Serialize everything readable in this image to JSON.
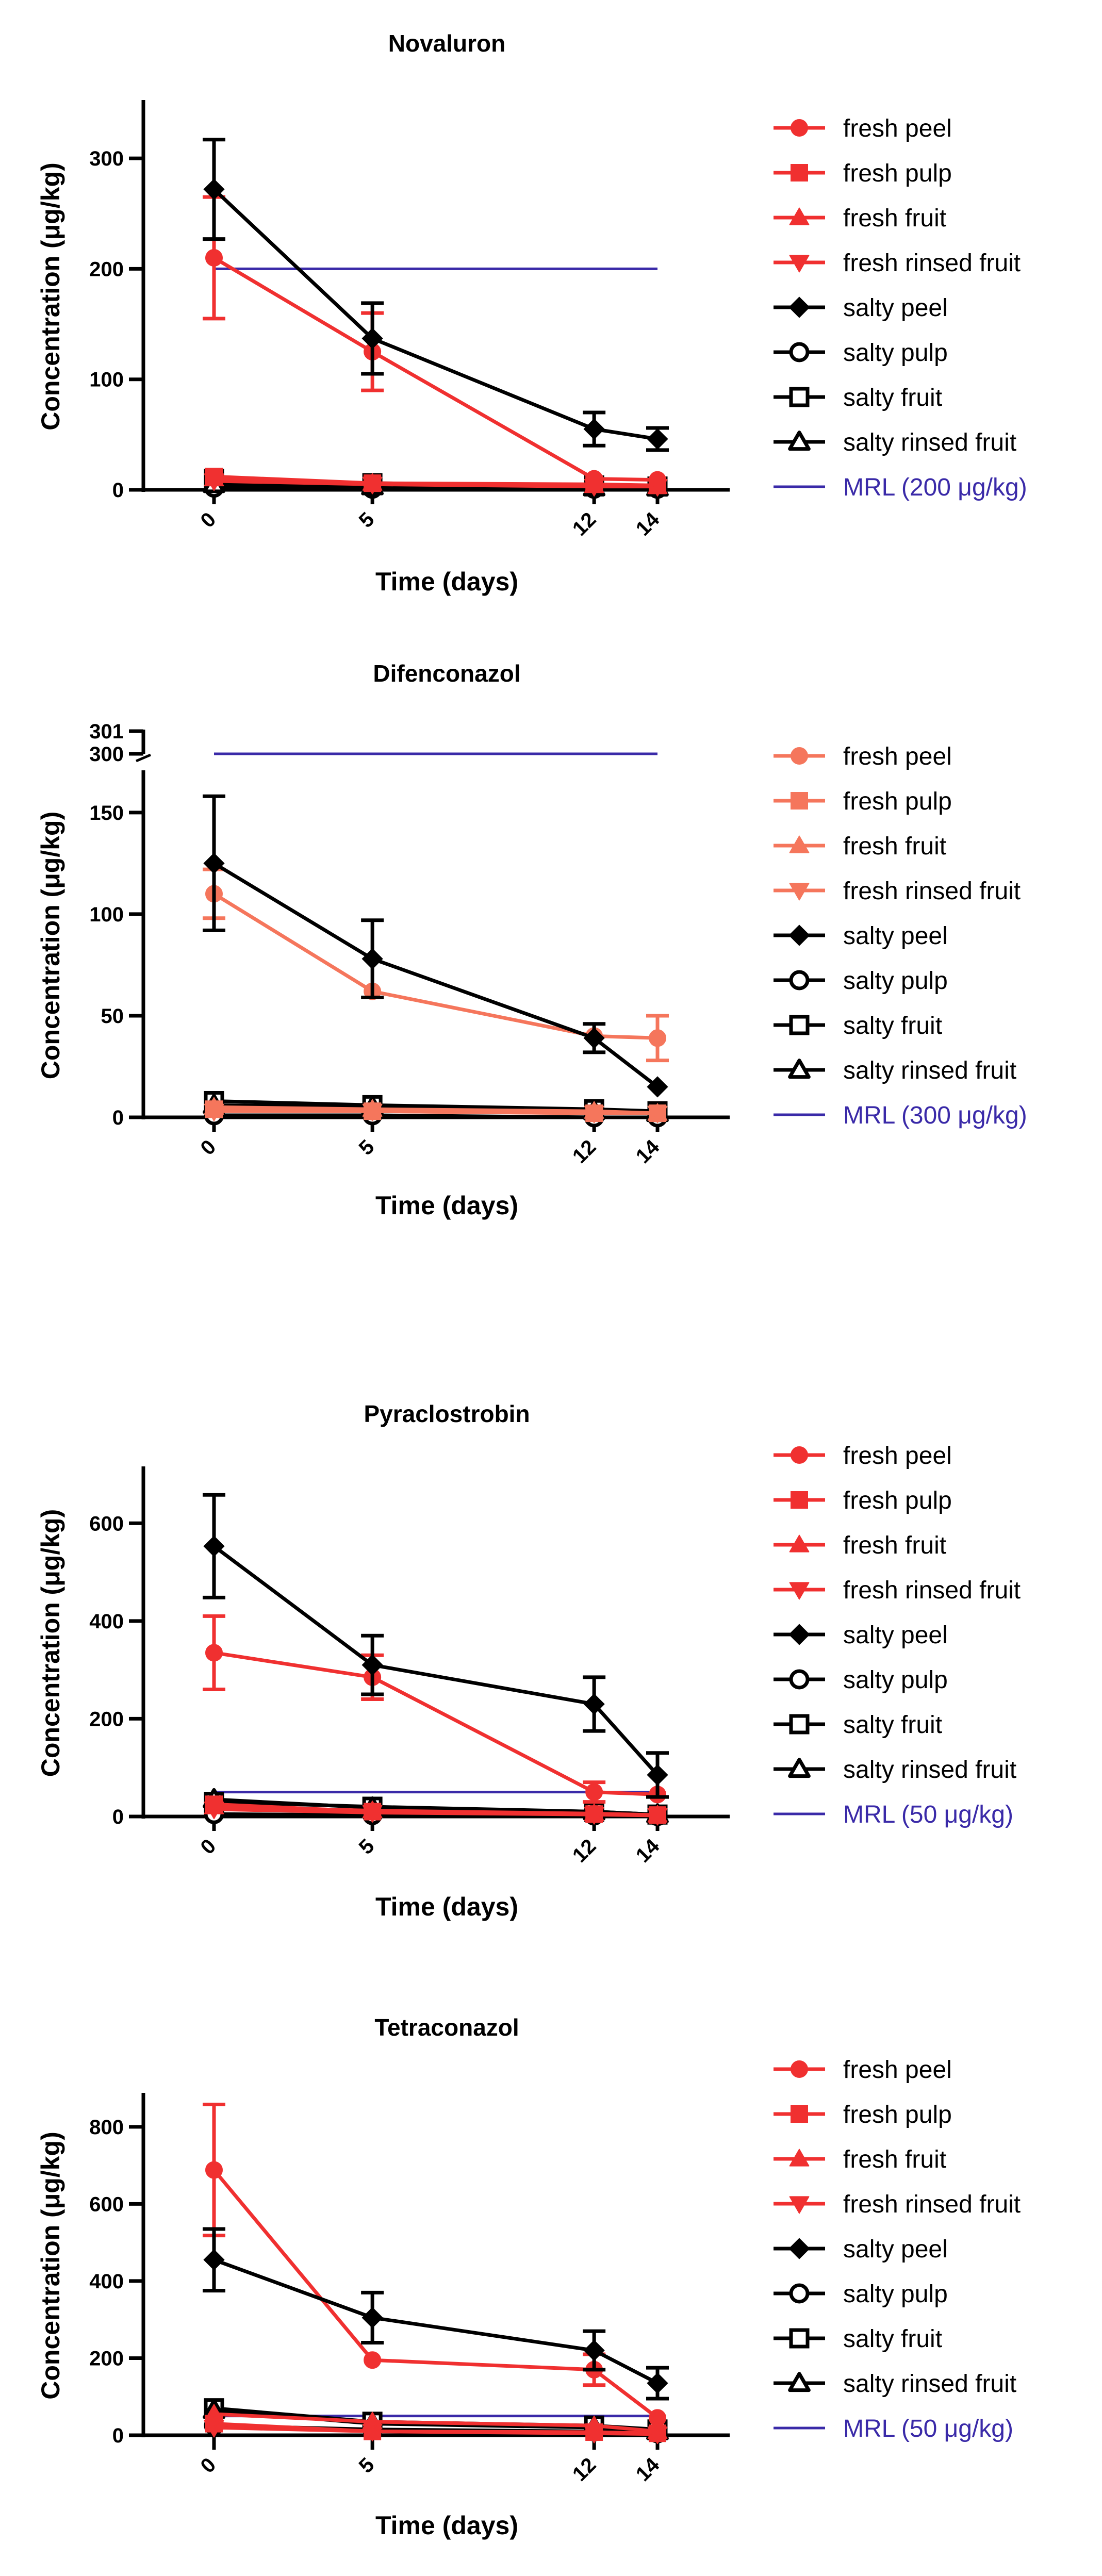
{
  "chart_data": [
    {
      "type": "line",
      "title": "Novaluron",
      "xlabel": "Time (days)",
      "ylabel": "Concentration (μg/kg)",
      "x": [
        0,
        5,
        12,
        14
      ],
      "x_tick_labels": [
        "0",
        "5",
        "12",
        "14"
      ],
      "ylim": [
        0,
        350
      ],
      "y_ticks": [
        0,
        100,
        200,
        300
      ],
      "fresh_color": "#f03030",
      "mrl": {
        "label": "MRL (200 μg/kg)",
        "value": 200,
        "color": "#3a2aa8"
      },
      "series": [
        {
          "name": "fresh peel",
          "group": "fresh",
          "marker": "circle-filled",
          "values": [
            210,
            125,
            10,
            9
          ],
          "errors": [
            55,
            35,
            0,
            0
          ]
        },
        {
          "name": "fresh pulp",
          "group": "fresh",
          "marker": "square-filled",
          "values": [
            12,
            6,
            5,
            4
          ],
          "errors": [
            0,
            0,
            0,
            0
          ]
        },
        {
          "name": "fresh fruit",
          "group": "fresh",
          "marker": "triangle-up-filled",
          "values": [
            10,
            6,
            4,
            3
          ],
          "errors": [
            0,
            0,
            0,
            0
          ]
        },
        {
          "name": "fresh rinsed fruit",
          "group": "fresh",
          "marker": "triangle-down-filled",
          "values": [
            8,
            5,
            3,
            3
          ],
          "errors": [
            0,
            0,
            0,
            0
          ]
        },
        {
          "name": "salty peel",
          "group": "salty",
          "marker": "diamond-filled",
          "values": [
            272,
            137,
            55,
            46
          ],
          "errors": [
            45,
            32,
            15,
            10
          ]
        },
        {
          "name": "salty pulp",
          "group": "salty",
          "marker": "circle-open",
          "values": [
            2,
            1,
            1,
            1
          ],
          "errors": [
            0,
            0,
            0,
            0
          ]
        },
        {
          "name": "salty fruit",
          "group": "salty",
          "marker": "square-open",
          "values": [
            10,
            6,
            4,
            3
          ],
          "errors": [
            0,
            0,
            0,
            0
          ]
        },
        {
          "name": "salty rinsed fruit",
          "group": "salty",
          "marker": "triangle-up-open",
          "values": [
            5,
            3,
            2,
            2
          ],
          "errors": [
            0,
            0,
            0,
            0
          ]
        }
      ]
    },
    {
      "type": "line",
      "title": "Difenconazol",
      "xlabel": "Time (days)",
      "ylabel": "Concentration (μg/kg)",
      "x": [
        0,
        5,
        12,
        14
      ],
      "x_tick_labels": [
        "0",
        "5",
        "12",
        "14"
      ],
      "ylim": [
        0,
        170
      ],
      "y_ticks": [
        0,
        50,
        100,
        150
      ],
      "broken_axis": {
        "upper_ticks": [
          300,
          301
        ]
      },
      "fresh_color": "#f5765c",
      "mrl": {
        "label": "MRL (300 μg/kg)",
        "value": 300,
        "color": "#3a2aa8"
      },
      "series": [
        {
          "name": "fresh peel",
          "group": "fresh",
          "marker": "circle-filled",
          "values": [
            110,
            62,
            40,
            39
          ],
          "errors": [
            12,
            0,
            0,
            11
          ]
        },
        {
          "name": "fresh pulp",
          "group": "fresh",
          "marker": "square-filled",
          "values": [
            4,
            3,
            2,
            2
          ],
          "errors": [
            0,
            0,
            0,
            0
          ]
        },
        {
          "name": "fresh fruit",
          "group": "fresh",
          "marker": "triangle-up-filled",
          "values": [
            5,
            4,
            3,
            2
          ],
          "errors": [
            0,
            0,
            0,
            0
          ]
        },
        {
          "name": "fresh rinsed fruit",
          "group": "fresh",
          "marker": "triangle-down-filled",
          "values": [
            3,
            3,
            2,
            2
          ],
          "errors": [
            0,
            0,
            0,
            0
          ]
        },
        {
          "name": "salty peel",
          "group": "salty",
          "marker": "diamond-filled",
          "values": [
            125,
            78,
            39,
            15
          ],
          "errors": [
            33,
            19,
            7,
            0
          ]
        },
        {
          "name": "salty pulp",
          "group": "salty",
          "marker": "circle-open",
          "values": [
            1,
            1,
            0,
            0
          ],
          "errors": [
            0,
            0,
            0,
            0
          ]
        },
        {
          "name": "salty fruit",
          "group": "salty",
          "marker": "square-open",
          "values": [
            8,
            6,
            4,
            3
          ],
          "errors": [
            0,
            0,
            0,
            0
          ]
        },
        {
          "name": "salty rinsed fruit",
          "group": "salty",
          "marker": "triangle-up-open",
          "values": [
            6,
            5,
            3,
            2
          ],
          "errors": [
            0,
            0,
            0,
            0
          ]
        }
      ]
    },
    {
      "type": "line",
      "title": "Pyraclostrobin",
      "xlabel": "Time (days)",
      "ylabel": "Concentration (μg/kg)",
      "x": [
        0,
        5,
        12,
        14
      ],
      "x_tick_labels": [
        "0",
        "5",
        "12",
        "14"
      ],
      "ylim": [
        0,
        710
      ],
      "y_ticks": [
        0,
        200,
        400,
        600
      ],
      "fresh_color": "#f03030",
      "mrl": {
        "label": "MRL (50 μg/kg)",
        "value": 50,
        "color": "#3a2aa8"
      },
      "series": [
        {
          "name": "fresh peel",
          "group": "fresh",
          "marker": "circle-filled",
          "values": [
            335,
            285,
            50,
            45
          ],
          "errors": [
            75,
            45,
            20,
            0
          ]
        },
        {
          "name": "fresh pulp",
          "group": "fresh",
          "marker": "square-filled",
          "values": [
            25,
            10,
            5,
            3
          ],
          "errors": [
            0,
            0,
            0,
            0
          ]
        },
        {
          "name": "fresh fruit",
          "group": "fresh",
          "marker": "triangle-up-filled",
          "values": [
            20,
            12,
            6,
            3
          ],
          "errors": [
            0,
            0,
            0,
            0
          ]
        },
        {
          "name": "fresh rinsed fruit",
          "group": "fresh",
          "marker": "triangle-down-filled",
          "values": [
            15,
            8,
            4,
            2
          ],
          "errors": [
            0,
            0,
            0,
            0
          ]
        },
        {
          "name": "salty peel",
          "group": "salty",
          "marker": "diamond-filled",
          "values": [
            553,
            310,
            230,
            85
          ],
          "errors": [
            105,
            60,
            55,
            45
          ]
        },
        {
          "name": "salty pulp",
          "group": "salty",
          "marker": "circle-open",
          "values": [
            5,
            3,
            2,
            1
          ],
          "errors": [
            0,
            0,
            0,
            0
          ]
        },
        {
          "name": "salty fruit",
          "group": "salty",
          "marker": "square-open",
          "values": [
            30,
            20,
            10,
            4
          ],
          "errors": [
            0,
            0,
            0,
            0
          ]
        },
        {
          "name": "salty rinsed fruit",
          "group": "salty",
          "marker": "triangle-up-open",
          "values": [
            35,
            18,
            10,
            4
          ],
          "errors": [
            0,
            0,
            0,
            0
          ]
        }
      ]
    },
    {
      "type": "line",
      "title": "Tetraconazol",
      "xlabel": "Time (days)",
      "ylabel": "Concentration (μg/kg)",
      "x": [
        0,
        5,
        12,
        14
      ],
      "x_tick_labels": [
        "0",
        "5",
        "12",
        "14"
      ],
      "ylim": [
        0,
        880
      ],
      "y_ticks": [
        0,
        200,
        400,
        600,
        800
      ],
      "fresh_color": "#f03030",
      "mrl": {
        "label": "MRL (50 μg/kg)",
        "value": 50,
        "color": "#3a2aa8"
      },
      "series": [
        {
          "name": "fresh peel",
          "group": "fresh",
          "marker": "circle-filled",
          "values": [
            688,
            195,
            170,
            45
          ],
          "errors": [
            170,
            0,
            40,
            0
          ]
        },
        {
          "name": "fresh pulp",
          "group": "fresh",
          "marker": "square-filled",
          "values": [
            30,
            10,
            8,
            5
          ],
          "errors": [
            0,
            0,
            0,
            0
          ]
        },
        {
          "name": "fresh fruit",
          "group": "fresh",
          "marker": "triangle-up-filled",
          "values": [
            55,
            35,
            25,
            10
          ],
          "errors": [
            0,
            0,
            0,
            0
          ]
        },
        {
          "name": "fresh rinsed fruit",
          "group": "fresh",
          "marker": "triangle-down-filled",
          "values": [
            20,
            10,
            5,
            3
          ],
          "errors": [
            0,
            0,
            0,
            0
          ]
        },
        {
          "name": "salty peel",
          "group": "salty",
          "marker": "diamond-filled",
          "values": [
            455,
            305,
            220,
            135
          ],
          "errors": [
            80,
            65,
            50,
            40
          ]
        },
        {
          "name": "salty pulp",
          "group": "salty",
          "marker": "circle-open",
          "values": [
            25,
            15,
            10,
            5
          ],
          "errors": [
            0,
            0,
            0,
            0
          ]
        },
        {
          "name": "salty fruit",
          "group": "salty",
          "marker": "square-open",
          "values": [
            70,
            35,
            25,
            15
          ],
          "errors": [
            0,
            0,
            0,
            0
          ]
        },
        {
          "name": "salty rinsed fruit",
          "group": "salty",
          "marker": "triangle-up-open",
          "values": [
            65,
            30,
            20,
            10
          ],
          "errors": [
            0,
            0,
            0,
            0
          ]
        }
      ]
    }
  ]
}
